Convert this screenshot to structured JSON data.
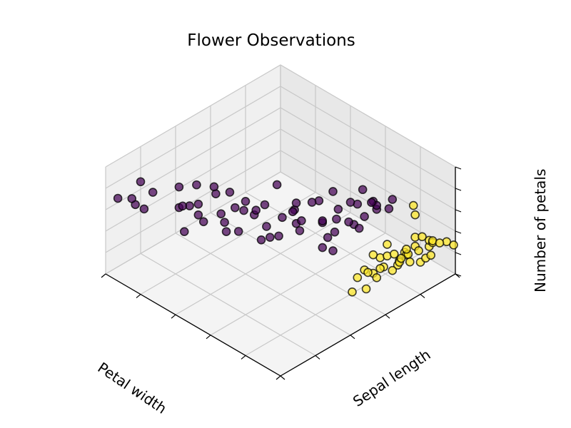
{
  "chart_data": {
    "type": "scatter",
    "title": "Flower Observations",
    "xlabel": "Petal width",
    "ylabel": "Sepal length",
    "zlabel": "Number of petals",
    "grid": true,
    "colors": {
      "cluster_dark": "#440154",
      "cluster_light": "#fde725",
      "edge": "#000000",
      "pane": "#f2f2f2",
      "grid": "#c8c8c8"
    },
    "series": [
      {
        "color": "#440154",
        "points": [
          [
            0.99,
            0.19,
            0.69
          ],
          [
            1.0,
            0.07,
            0.64
          ],
          [
            0.94,
            0.21,
            0.62
          ],
          [
            0.99,
            0.14,
            0.58
          ],
          [
            0.92,
            0.14,
            0.55
          ],
          [
            0.94,
            0.11,
            0.6
          ],
          [
            0.87,
            0.29,
            0.66
          ],
          [
            0.79,
            0.21,
            0.62
          ],
          [
            0.82,
            0.34,
            0.68
          ],
          [
            0.8,
            0.28,
            0.56
          ],
          [
            0.75,
            0.37,
            0.7
          ],
          [
            0.72,
            0.25,
            0.58
          ],
          [
            0.84,
            0.28,
            0.52
          ],
          [
            0.71,
            0.24,
            0.7
          ],
          [
            0.7,
            0.33,
            0.72
          ],
          [
            0.71,
            0.42,
            0.64
          ],
          [
            0.72,
            0.17,
            0.5
          ],
          [
            0.64,
            0.38,
            0.6
          ],
          [
            0.62,
            0.42,
            0.64
          ],
          [
            0.64,
            0.32,
            0.52
          ],
          [
            0.74,
            0.3,
            0.45
          ],
          [
            0.54,
            0.3,
            0.55
          ],
          [
            0.55,
            0.4,
            0.6
          ],
          [
            0.58,
            0.49,
            0.58
          ],
          [
            0.5,
            0.42,
            0.52
          ],
          [
            0.47,
            0.55,
            0.58
          ],
          [
            0.44,
            0.53,
            0.5
          ],
          [
            0.46,
            0.45,
            0.44
          ],
          [
            0.47,
            0.59,
            0.44
          ],
          [
            0.52,
            0.53,
            0.48
          ],
          [
            0.53,
            0.62,
            0.52
          ],
          [
            0.4,
            0.51,
            0.49
          ],
          [
            0.42,
            0.66,
            0.42
          ],
          [
            0.38,
            0.62,
            0.48
          ],
          [
            0.39,
            0.72,
            0.5
          ],
          [
            0.33,
            0.64,
            0.42
          ],
          [
            0.35,
            0.74,
            0.4
          ],
          [
            0.31,
            0.76,
            0.36
          ],
          [
            0.33,
            0.88,
            0.44
          ],
          [
            0.3,
            0.92,
            0.4
          ],
          [
            0.37,
            0.89,
            0.42
          ],
          [
            0.42,
            0.74,
            0.36
          ],
          [
            0.36,
            0.63,
            0.35
          ],
          [
            0.31,
            0.55,
            0.38
          ],
          [
            0.3,
            0.78,
            0.46
          ],
          [
            0.41,
            0.81,
            0.46
          ],
          [
            0.27,
            0.69,
            0.5
          ],
          [
            0.55,
            0.62,
            0.42
          ],
          [
            0.28,
            0.58,
            0.35
          ],
          [
            0.65,
            0.31,
            0.6
          ],
          [
            0.6,
            0.29,
            0.5
          ],
          [
            0.46,
            0.68,
            0.55
          ],
          [
            0.52,
            0.7,
            0.46
          ],
          [
            0.39,
            0.86,
            0.55
          ],
          [
            0.22,
            0.86,
            0.62
          ],
          [
            0.25,
            0.78,
            0.65
          ],
          [
            0.58,
            0.56,
            0.7
          ],
          [
            0.47,
            0.36,
            0.48
          ],
          [
            0.51,
            0.45,
            0.38
          ],
          [
            0.45,
            0.75,
            0.58
          ],
          [
            0.62,
            0.48,
            0.5
          ],
          [
            0.57,
            0.36,
            0.66
          ],
          [
            0.29,
            0.84,
            0.48
          ],
          [
            0.36,
            0.8,
            0.5
          ]
        ]
      },
      {
        "color": "#fde725",
        "points": [
          [
            0.23,
            0.99,
            0.43
          ],
          [
            0.2,
            0.97,
            0.39
          ],
          [
            0.02,
            0.79,
            0.44
          ],
          [
            0.05,
            0.77,
            0.35
          ],
          [
            0.0,
            0.68,
            0.43
          ],
          [
            0.0,
            0.74,
            0.36
          ],
          [
            0.03,
            0.82,
            0.36
          ],
          [
            0.01,
            0.86,
            0.38
          ],
          [
            0.03,
            0.9,
            0.36
          ],
          [
            0.0,
            0.83,
            0.31
          ],
          [
            0.0,
            0.8,
            0.3
          ],
          [
            0.04,
            0.63,
            0.38
          ],
          [
            0.03,
            0.7,
            0.34
          ],
          [
            0.08,
            0.56,
            0.38
          ],
          [
            0.06,
            0.59,
            0.34
          ],
          [
            0.09,
            0.66,
            0.39
          ],
          [
            0.06,
            0.74,
            0.3
          ],
          [
            0.11,
            0.72,
            0.33
          ],
          [
            0.1,
            0.6,
            0.3
          ],
          [
            0.1,
            0.67,
            0.27
          ],
          [
            0.1,
            0.79,
            0.25
          ],
          [
            0.05,
            0.96,
            0.28
          ],
          [
            0.06,
            0.93,
            0.32
          ],
          [
            0.01,
            0.96,
            0.33
          ],
          [
            0.12,
            0.77,
            0.29
          ],
          [
            0.13,
            0.85,
            0.25
          ],
          [
            0.02,
            0.88,
            0.27
          ],
          [
            0.11,
            0.55,
            0.29
          ],
          [
            0.07,
            0.48,
            0.26
          ],
          [
            0.04,
            0.53,
            0.27
          ],
          [
            0.08,
            0.85,
            0.41
          ],
          [
            0.14,
            0.67,
            0.36
          ],
          [
            0.02,
            0.73,
            0.44
          ],
          [
            0.07,
            0.62,
            0.26
          ],
          [
            0.13,
            0.74,
            0.4
          ],
          [
            0.03,
            0.88,
            0.4
          ],
          [
            0.09,
            0.82,
            0.27
          ],
          [
            0.05,
            0.69,
            0.28
          ],
          [
            0.0,
            0.99,
            0.28
          ],
          [
            0.12,
            0.93,
            0.3
          ]
        ]
      }
    ]
  }
}
